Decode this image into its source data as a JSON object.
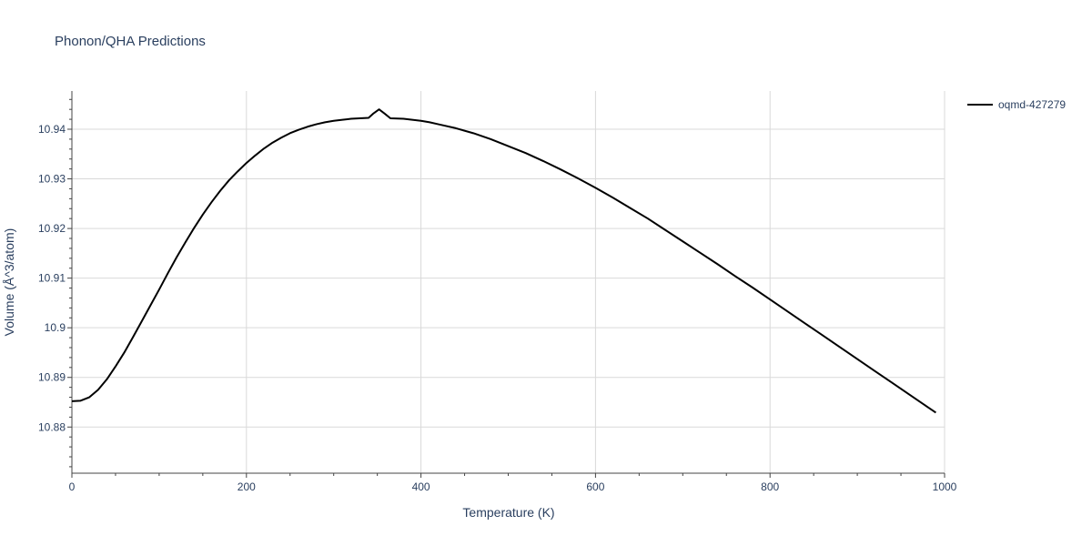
{
  "chart_data": {
    "type": "line",
    "title": "Phonon/QHA Predictions",
    "xlabel": "Temperature (K)",
    "ylabel": "Volume (Å^3/atom)",
    "xlim": [
      0,
      1000
    ],
    "ylim": [
      10.8707,
      10.9477
    ],
    "x_ticks": [
      0,
      200,
      400,
      600,
      800,
      1000
    ],
    "x_tick_labels": [
      "0",
      "200",
      "400",
      "600",
      "800",
      "1000"
    ],
    "y_ticks": [
      10.88,
      10.89,
      10.9,
      10.91,
      10.92,
      10.93,
      10.94
    ],
    "y_tick_labels": [
      "10.88",
      "10.89",
      "10.9",
      "10.91",
      "10.92",
      "10.93",
      "10.94"
    ],
    "grid": true,
    "legend_position": "top-right",
    "series": [
      {
        "name": "oqmd-427279",
        "color": "#000000",
        "x": [
          0,
          10,
          20,
          30,
          40,
          50,
          60,
          70,
          80,
          90,
          100,
          110,
          120,
          130,
          140,
          150,
          160,
          170,
          180,
          190,
          200,
          210,
          220,
          230,
          240,
          250,
          260,
          270,
          280,
          290,
          300,
          310,
          320,
          330,
          340,
          345,
          352,
          358,
          365,
          380,
          400,
          410,
          420,
          440,
          460,
          480,
          500,
          520,
          540,
          560,
          580,
          600,
          620,
          640,
          660,
          680,
          700,
          720,
          740,
          760,
          780,
          800,
          820,
          840,
          860,
          880,
          900,
          920,
          940,
          960,
          980,
          990
        ],
        "y": [
          10.8852,
          10.8853,
          10.886,
          10.8875,
          10.8896,
          10.8922,
          10.895,
          10.8981,
          10.9013,
          10.9045,
          10.9077,
          10.911,
          10.9142,
          10.9172,
          10.9201,
          10.9228,
          10.9253,
          10.9276,
          10.9297,
          10.9315,
          10.9332,
          10.9347,
          10.9361,
          10.9373,
          10.9383,
          10.9392,
          10.9399,
          10.9405,
          10.941,
          10.9414,
          10.9417,
          10.9419,
          10.9421,
          10.9422,
          10.9423,
          10.9431,
          10.944,
          10.9432,
          10.9422,
          10.9421,
          10.9417,
          10.9414,
          10.941,
          10.9402,
          10.9392,
          10.938,
          10.9366,
          10.9352,
          10.9336,
          10.9319,
          10.9301,
          10.9282,
          10.9262,
          10.9241,
          10.922,
          10.9197,
          10.9174,
          10.9151,
          10.9128,
          10.9104,
          10.9081,
          10.9057,
          10.9033,
          10.9009,
          10.8985,
          10.8961,
          10.8937,
          10.8913,
          10.8889,
          10.8865,
          10.8841,
          10.8829
        ]
      }
    ]
  }
}
